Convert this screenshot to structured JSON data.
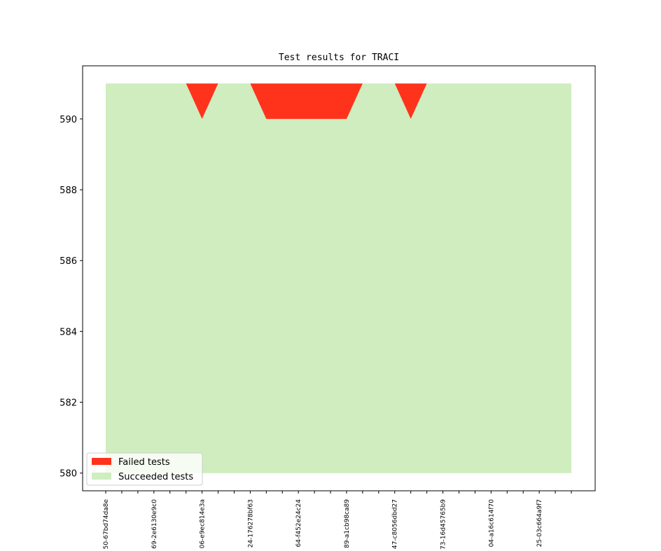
{
  "chart_data": {
    "type": "area",
    "title": "Test results for TRACI",
    "xlabel": "",
    "ylabel": "",
    "ylim": [
      579.5,
      591.5
    ],
    "yticks": [
      580,
      582,
      584,
      586,
      588,
      590
    ],
    "tick_count": 30,
    "x_labels": [
      {
        "index": 0,
        "label": "50-67bd74da8e"
      },
      {
        "index": 3,
        "label": "69-2e6130e9c0"
      },
      {
        "index": 6,
        "label": "06-e9ec814e3a"
      },
      {
        "index": 9,
        "label": "24-176278bf63"
      },
      {
        "index": 12,
        "label": "64-f452e24c24"
      },
      {
        "index": 15,
        "label": "89-a1cb98ca89"
      },
      {
        "index": 18,
        "label": "47-c8056dbd27"
      },
      {
        "index": 21,
        "label": "73-16d45765b9"
      },
      {
        "index": 24,
        "label": "04-a16c614f70"
      },
      {
        "index": 27,
        "label": "25-03c664a9f7"
      }
    ],
    "total": 591,
    "series": [
      {
        "name": "Succeeded tests",
        "color": "#cfedbf",
        "values": [
          591,
          591,
          591,
          591,
          591,
          591,
          590,
          591,
          591,
          591,
          590,
          590,
          590,
          590,
          590,
          590,
          591,
          591,
          591,
          590,
          591,
          591,
          591,
          591,
          591,
          591,
          591,
          591,
          591,
          591
        ]
      },
      {
        "name": "Failed tests",
        "color": "#ff331c",
        "values": [
          0,
          0,
          0,
          0,
          0,
          0,
          1,
          0,
          0,
          0,
          1,
          1,
          1,
          1,
          1,
          1,
          0,
          0,
          0,
          1,
          0,
          0,
          0,
          0,
          0,
          0,
          0,
          0,
          0,
          0
        ]
      }
    ],
    "legend": {
      "placement": "lower-left",
      "items": [
        {
          "label": "Failed tests",
          "color": "#ff331c"
        },
        {
          "label": "Succeeded tests",
          "color": "#cfedbf"
        }
      ]
    },
    "grid": false
  }
}
